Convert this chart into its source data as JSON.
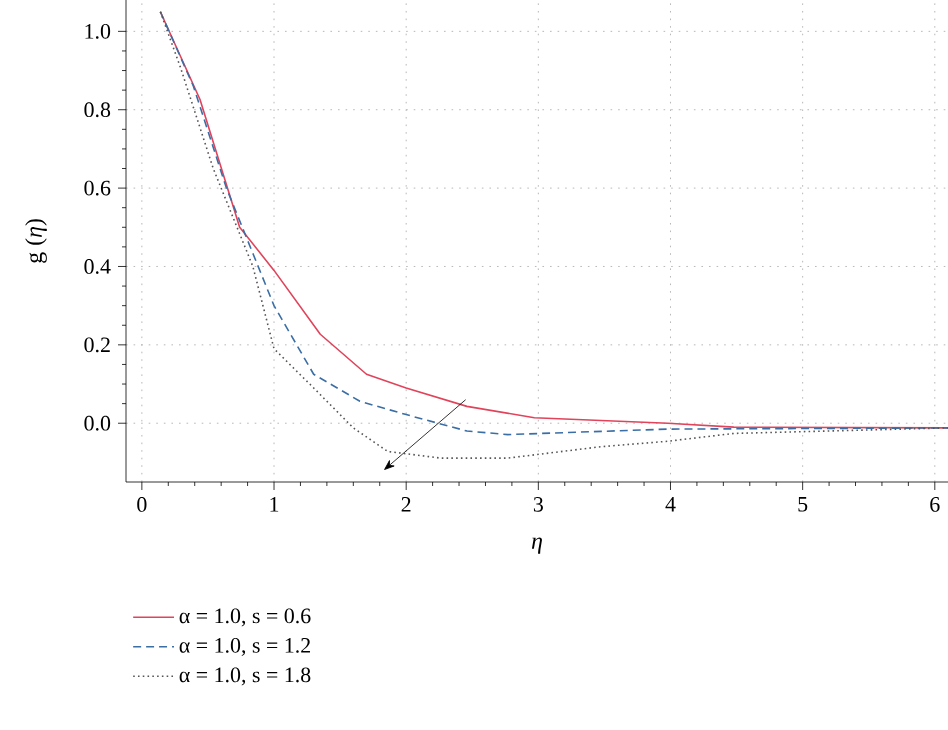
{
  "chart_data": {
    "type": "line",
    "xlabel": "η",
    "ylabel": "g (*η*)",
    "xlim": [
      -0.12,
      6.1
    ],
    "ylim": [
      -0.15,
      1.08
    ],
    "xticks": [
      0,
      1,
      2,
      3,
      4,
      5,
      6
    ],
    "yticks": [
      {
        "value": 0,
        "label": "0.0"
      },
      {
        "value": 0.2,
        "label": "0.2"
      },
      {
        "value": 0.4,
        "label": "0.4"
      },
      {
        "value": 0.6,
        "label": "0.6"
      },
      {
        "value": 0.8,
        "label": "0.8"
      },
      {
        "value": 1.0,
        "label": "1.0"
      }
    ],
    "grid": true,
    "legend": "bottom left",
    "series": [
      {
        "name": "α = 1.0, s = 0.6",
        "color": "#e0435a",
        "line_style": "solid",
        "x": [
          0.14,
          0.44,
          0.74,
          1.0,
          1.35,
          1.7,
          2.0,
          2.46,
          2.97,
          3.98,
          4.48,
          6.1
        ],
        "values": [
          1.05,
          0.826,
          0.5,
          0.39,
          0.227,
          0.125,
          0.09,
          0.043,
          0.014,
          0.0,
          -0.01,
          -0.012
        ]
      },
      {
        "name": "α = 1.0, s = 1.2",
        "color": "#3a6ea5",
        "line_style": "dashed",
        "x": [
          0.14,
          0.39,
          0.64,
          1.0,
          1.3,
          1.65,
          2.0,
          2.46,
          2.77,
          3.98,
          6.1
        ],
        "values": [
          1.05,
          0.86,
          0.6,
          0.3,
          0.125,
          0.056,
          0.022,
          -0.02,
          -0.029,
          -0.015,
          -0.012
        ]
      },
      {
        "name": "α = 1.0, s = 1.8",
        "color": "#555555",
        "line_style": "dotted",
        "x": [
          0.14,
          0.29,
          0.54,
          0.84,
          1.0,
          1.3,
          1.6,
          1.86,
          2.26,
          2.77,
          3.47,
          3.98,
          4.48,
          6.1
        ],
        "values": [
          1.05,
          0.91,
          0.65,
          0.4,
          0.19,
          0.09,
          -0.012,
          -0.072,
          -0.089,
          -0.089,
          -0.06,
          -0.046,
          -0.026,
          -0.012
        ]
      }
    ]
  }
}
